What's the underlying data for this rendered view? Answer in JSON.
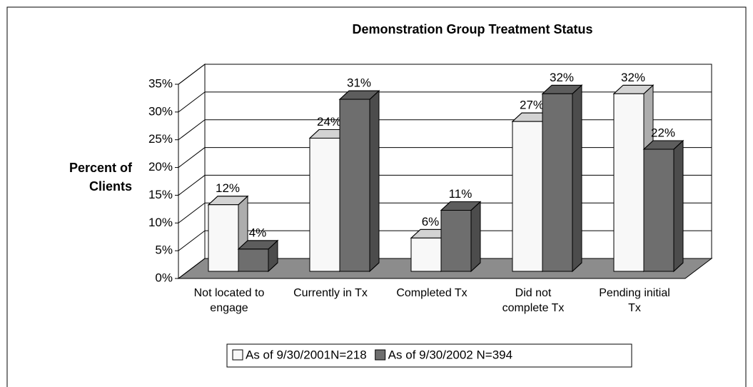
{
  "chart_data": {
    "type": "bar3d",
    "title": "Demonstration Group Treatment Status",
    "y_label": "Percent of Clients",
    "categories": [
      "Not located to engage",
      "Currently in Tx",
      "Completed Tx",
      "Did not complete Tx",
      "Pending initial Tx"
    ],
    "series": [
      {
        "name": "As of 9/30/2001N=218",
        "color": "#f8f8f8",
        "values": [
          12,
          24,
          6,
          27,
          32
        ],
        "value_labels": [
          "12%",
          "24%",
          "6%",
          "27%",
          "32%"
        ]
      },
      {
        "name": "As of 9/30/2002 N=394",
        "color": "#6e6e6e",
        "values": [
          4,
          31,
          11,
          32,
          22
        ],
        "value_labels": [
          "4%",
          "31%",
          "11%",
          "32%",
          "22%"
        ]
      }
    ],
    "ylim": [
      0,
      35
    ],
    "yticks": [
      {
        "value": 0,
        "label": "0%"
      },
      {
        "value": 5,
        "label": "5%"
      },
      {
        "value": 10,
        "label": "10%"
      },
      {
        "value": 15,
        "label": "15%"
      },
      {
        "value": 20,
        "label": "20%"
      },
      {
        "value": 25,
        "label": "25%"
      },
      {
        "value": 30,
        "label": "30%"
      },
      {
        "value": 35,
        "label": "35%"
      }
    ],
    "grid": true,
    "legend": "bottom"
  }
}
